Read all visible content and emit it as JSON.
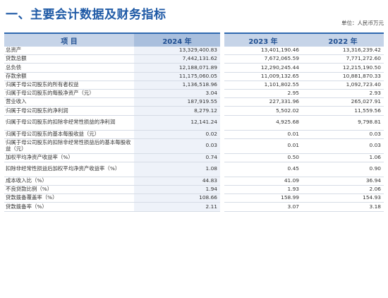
{
  "page": {
    "title": "一、主要会计数据及财务指标",
    "unit": "单位：人民币万元"
  },
  "table": {
    "headers": {
      "item": "项  目",
      "y2024": "2024 年",
      "y2023": "2023 年",
      "y2022": "2022 年"
    },
    "rows": [
      {
        "label": "总资产",
        "v2024": "13,329,400.83",
        "v2023": "13,401,190.46",
        "v2022": "13,316,239.42",
        "lines": 1
      },
      {
        "label": "贷款总额",
        "v2024": "7,442,131.62",
        "v2023": "7,672,065.59",
        "v2022": "7,771,272.60",
        "lines": 1
      },
      {
        "label": "总负债",
        "v2024": "12,188,071.89",
        "v2023": "12,290,245.44",
        "v2022": "12,215,190.50",
        "lines": 1
      },
      {
        "label": "存款余额",
        "v2024": "11,175,060.05",
        "v2023": "11,009,132.65",
        "v2022": "10,881,870.33",
        "lines": 1
      },
      {
        "label": "归属于母公司股东的所有者权益",
        "v2024": "1,136,518.96",
        "v2023": "1,101,802.55",
        "v2022": "1,092,723.40",
        "lines": 1
      },
      {
        "label": "归属于母公司股东的每股净资产（元）",
        "v2024": "3.04",
        "v2023": "2.95",
        "v2022": "2.93",
        "lines": 1
      },
      {
        "label": "营业收入",
        "v2024": "187,919.55",
        "v2023": "227,331.96",
        "v2022": "265,027.91",
        "lines": 1
      },
      {
        "label": "归属于母公司股东的净利润",
        "v2024": "8,279.12",
        "v2023": "5,502.02",
        "v2022": "11,559.56",
        "lines": 1
      },
      {
        "label": "归属于母公司股东的扣除非经常性损益的净利润",
        "v2024": "12,141.24",
        "v2023": "4,925.68",
        "v2022": "9,798.81",
        "lines": 2
      },
      {
        "label": "归属于母公司股东的基本每股收益（元）",
        "v2024": "0.02",
        "v2023": "0.01",
        "v2022": "0.03",
        "lines": 1
      },
      {
        "label": "归属于母公司股东的扣除非经常性损益后的基本每股收益（元）",
        "v2024": "0.03",
        "v2023": "0.01",
        "v2022": "0.03",
        "lines": 2
      },
      {
        "label": "加权平均净资产收益率（%）",
        "v2024": "0.74",
        "v2023": "0.50",
        "v2022": "1.06",
        "lines": 1
      },
      {
        "label": "扣除非经常性损益后加权平均净资产收益率（%）",
        "v2024": "1.08",
        "v2023": "0.45",
        "v2022": "0.90",
        "lines": 2
      },
      {
        "label": "成本收入比（%）",
        "v2024": "44.83",
        "v2023": "41.09",
        "v2022": "36.94",
        "lines": 1
      },
      {
        "label": "不良贷款比例（%）",
        "v2024": "1.94",
        "v2023": "1.93",
        "v2022": "2.06",
        "lines": 1
      },
      {
        "label": "贷款拨备覆盖率（%）",
        "v2024": "108.66",
        "v2023": "158.99",
        "v2022": "154.93",
        "lines": 1
      },
      {
        "label": "贷款拨备率（%）",
        "v2024": "2.11",
        "v2023": "3.07",
        "v2022": "3.18",
        "lines": 1
      }
    ]
  }
}
